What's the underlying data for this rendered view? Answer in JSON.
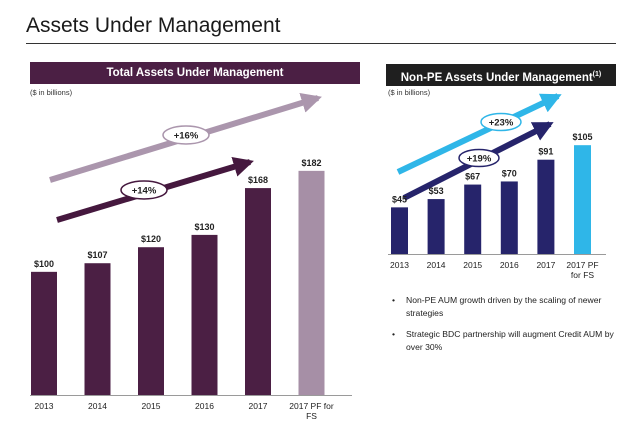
{
  "page": {
    "title": "Assets Under Management"
  },
  "colors": {
    "left_header_bg": "#4b1f44",
    "right_header_bg": "#1f1f1f",
    "bar_dark_purple": "#4b1f44",
    "bar_light_purple": "#a68fa6",
    "bar_navy": "#26246b",
    "bar_cyan": "#2fb6e8",
    "arrow_light_purple": "#ab96ad",
    "arrow_dark_purple": "#45183e",
    "arrow_cyan": "#2fb6e8",
    "arrow_navy": "#26246b"
  },
  "chart_data": [
    {
      "type": "bar",
      "title": "Total Assets Under Management",
      "units_note": "($ in billions)",
      "categories": [
        "2013",
        "2014",
        "2015",
        "2016",
        "2017",
        "2017 PF for FS"
      ],
      "values": [
        100,
        107,
        120,
        130,
        168,
        182
      ],
      "value_labels": [
        "$100",
        "$107",
        "$120",
        "$130",
        "$168",
        "$182"
      ],
      "ylim": [
        0,
        190
      ],
      "grid": false,
      "growth_annotations": [
        {
          "label": "+16%",
          "style": "light"
        },
        {
          "label": "+14%",
          "style": "dark"
        }
      ]
    },
    {
      "type": "bar",
      "title": "Non-PE Assets Under Management",
      "title_superscript": "(1)",
      "units_note": "($ in billions)",
      "categories": [
        "2013",
        "2014",
        "2015",
        "2016",
        "2017",
        "2017 PF for FS"
      ],
      "values": [
        45,
        53,
        67,
        70,
        91,
        105
      ],
      "value_labels": [
        "$45",
        "$53",
        "$67",
        "$70",
        "$91",
        "$105"
      ],
      "ylim": [
        0,
        110
      ],
      "grid": false,
      "growth_annotations": [
        {
          "label": "+23%",
          "style": "cyan"
        },
        {
          "label": "+19%",
          "style": "navy"
        }
      ]
    }
  ],
  "bullets": [
    "Non-PE AUM growth driven by the scaling of newer strategies",
    "Strategic BDC partnership will augment Credit AUM by over 30%"
  ]
}
